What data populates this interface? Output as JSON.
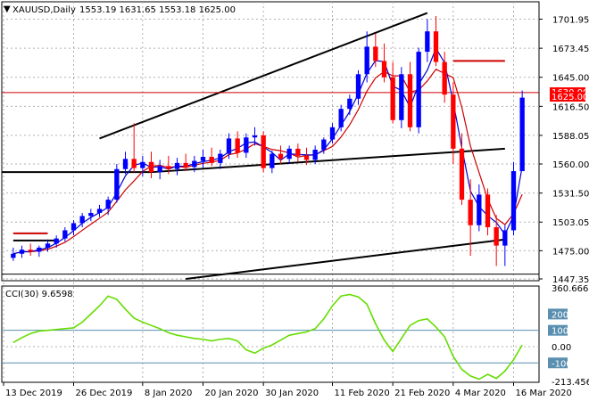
{
  "header": {
    "symbol": "XAUUSD,Daily",
    "ohlc": "1553.19 1631.65 1553.18 1625.00",
    "menu_glyph": "▼"
  },
  "indicator": {
    "label": "CCI(30) 9.6598"
  },
  "price_axis": {
    "ticks": [
      "1701.95",
      "1673.45",
      "1645.00",
      "1616.50",
      "1588.05",
      "1560.00",
      "1531.50",
      "1503.05",
      "1475.00",
      "1447.35"
    ],
    "current_price_tag": "1625.00",
    "hline_tag": "1630.00"
  },
  "cci_axis": {
    "ticks": [
      "360.6661",
      "200",
      "100",
      "0.00",
      "-100",
      "-213.4566"
    ]
  },
  "time_axis": {
    "labels": [
      "13 Dec 2019",
      "26 Dec 2019",
      "8 Jan 2020",
      "20 Jan 2020",
      "30 Jan 2020",
      "11 Feb 2020",
      "21 Feb 2020",
      "4 Mar 2020",
      "16 Mar 2020"
    ]
  },
  "colors": {
    "bull": "#0000ff",
    "bear": "#ff0000",
    "fast_ma": "#0000cc",
    "slow_ma": "#cc0000",
    "cci_line": "#66dd00",
    "hline": "#cc0000",
    "trendline": "#000000",
    "tag_bg": "#ff0000"
  },
  "chart_data": [
    {
      "type": "candlestick",
      "title": "XAUUSD,Daily",
      "ylim": [
        1447.35,
        1710
      ],
      "x": [
        "13 Dec 2019",
        "26 Dec 2019",
        "8 Jan 2020",
        "20 Jan 2020",
        "30 Jan 2020",
        "11 Feb 2020",
        "21 Feb 2020",
        "4 Mar 2020",
        "16 Mar 2020"
      ],
      "candles": [
        [
          1468,
          1478,
          1465,
          1472
        ],
        [
          1472,
          1480,
          1468,
          1476
        ],
        [
          1476,
          1482,
          1470,
          1474
        ],
        [
          1474,
          1480,
          1469,
          1478
        ],
        [
          1478,
          1486,
          1474,
          1482
        ],
        [
          1482,
          1490,
          1478,
          1487
        ],
        [
          1487,
          1498,
          1484,
          1495
        ],
        [
          1495,
          1505,
          1490,
          1502
        ],
        [
          1502,
          1512,
          1498,
          1509
        ],
        [
          1509,
          1516,
          1504,
          1512
        ],
        [
          1512,
          1520,
          1508,
          1516
        ],
        [
          1516,
          1528,
          1510,
          1525
        ],
        [
          1525,
          1560,
          1522,
          1555
        ],
        [
          1555,
          1572,
          1550,
          1565
        ],
        [
          1565,
          1600,
          1552,
          1556
        ],
        [
          1556,
          1568,
          1548,
          1562
        ],
        [
          1562,
          1572,
          1546,
          1552
        ],
        [
          1552,
          1564,
          1545,
          1558
        ],
        [
          1558,
          1568,
          1550,
          1555
        ],
        [
          1555,
          1566,
          1549,
          1561
        ],
        [
          1561,
          1570,
          1553,
          1557
        ],
        [
          1557,
          1568,
          1552,
          1563
        ],
        [
          1563,
          1574,
          1556,
          1567
        ],
        [
          1567,
          1576,
          1558,
          1561
        ],
        [
          1561,
          1574,
          1555,
          1570
        ],
        [
          1570,
          1590,
          1565,
          1585
        ],
        [
          1585,
          1592,
          1566,
          1571
        ],
        [
          1571,
          1590,
          1566,
          1586
        ],
        [
          1586,
          1596,
          1578,
          1588
        ],
        [
          1588,
          1592,
          1552,
          1556
        ],
        [
          1556,
          1573,
          1551,
          1570
        ],
        [
          1570,
          1578,
          1560,
          1565
        ],
        [
          1565,
          1578,
          1560,
          1575
        ],
        [
          1575,
          1580,
          1562,
          1568
        ],
        [
          1568,
          1576,
          1559,
          1564
        ],
        [
          1564,
          1578,
          1560,
          1574
        ],
        [
          1574,
          1586,
          1570,
          1584
        ],
        [
          1584,
          1600,
          1580,
          1596
        ],
        [
          1596,
          1618,
          1592,
          1614
        ],
        [
          1614,
          1628,
          1608,
          1624
        ],
        [
          1624,
          1652,
          1618,
          1648
        ],
        [
          1648,
          1690,
          1640,
          1675
        ],
        [
          1675,
          1688,
          1655,
          1661
        ],
        [
          1661,
          1678,
          1640,
          1645
        ],
        [
          1645,
          1660,
          1600,
          1603
        ],
        [
          1603,
          1655,
          1595,
          1648
        ],
        [
          1648,
          1660,
          1592,
          1596
        ],
        [
          1596,
          1674,
          1590,
          1670
        ],
        [
          1670,
          1702,
          1660,
          1690
        ],
        [
          1690,
          1705,
          1656,
          1660
        ],
        [
          1660,
          1670,
          1620,
          1628
        ],
        [
          1628,
          1640,
          1560,
          1575
        ],
        [
          1575,
          1590,
          1520,
          1525
        ],
        [
          1525,
          1545,
          1470,
          1500
        ],
        [
          1500,
          1540,
          1494,
          1530
        ],
        [
          1530,
          1536,
          1490,
          1498
        ],
        [
          1498,
          1510,
          1460,
          1480
        ],
        [
          1480,
          1500,
          1460,
          1495
        ],
        [
          1495,
          1562,
          1490,
          1553
        ],
        [
          1553,
          1632,
          1553,
          1625
        ]
      ]
    },
    {
      "type": "line",
      "title": "CCI(30) 9.6598",
      "ylim": [
        -213.4566,
        360.6661
      ],
      "series": [
        {
          "values": [
            25,
            55,
            80,
            95,
            100,
            105,
            110,
            115,
            150,
            200,
            250,
            310,
            290,
            230,
            175,
            150,
            130,
            110,
            85,
            70,
            60,
            50,
            45,
            35,
            45,
            50,
            35,
            -20,
            -40,
            -10,
            10,
            40,
            70,
            80,
            90,
            110,
            170,
            250,
            310,
            320,
            305,
            260,
            140,
            40,
            -30,
            50,
            130,
            160,
            170,
            120,
            60,
            -60,
            -140,
            -180,
            -200,
            -170,
            -195,
            -150,
            -80,
            10
          ]
        }
      ]
    }
  ]
}
